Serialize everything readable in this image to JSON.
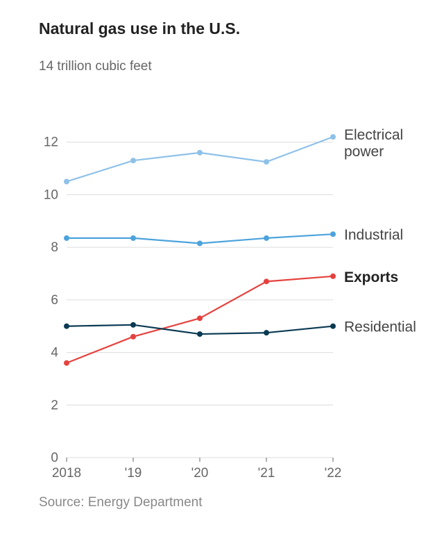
{
  "title": "Natural gas use in the U.S.",
  "y_top_label": "14 trillion cubic feet",
  "source_line": "Source: Energy Department",
  "chart": {
    "type": "line",
    "background_color": "#ffffff",
    "grid_color": "#dcdcdc",
    "axis_text_color": "#666666",
    "label_fontsize": 19,
    "series_label_fontsize": 21,
    "ylim": [
      0,
      14
    ],
    "ytick_step": 2,
    "yticks": [
      0,
      2,
      4,
      6,
      8,
      10,
      12
    ],
    "x_points": [
      2018,
      2019,
      2020,
      2021,
      2022
    ],
    "x_labels": [
      "2018",
      "'19",
      "'20",
      "'21",
      "'22"
    ],
    "line_width": 2.2,
    "marker_radius": 4,
    "series": [
      {
        "key": "electrical_power",
        "label": "Electrical power",
        "label_lines": [
          "Electrical",
          "power"
        ],
        "color": "#8ec1e8",
        "values": [
          10.5,
          11.3,
          11.6,
          11.25,
          12.2
        ],
        "bold": false
      },
      {
        "key": "industrial",
        "label": "Industrial",
        "label_lines": [
          "Industrial"
        ],
        "color": "#4ca3dc",
        "values": [
          8.35,
          8.35,
          8.15,
          8.35,
          8.5
        ],
        "bold": false
      },
      {
        "key": "exports",
        "label": "Exports",
        "label_lines": [
          "Exports"
        ],
        "color": "#e5423e",
        "values": [
          3.6,
          4.6,
          5.3,
          6.7,
          6.9
        ],
        "bold": true
      },
      {
        "key": "residential",
        "label": "Residential",
        "label_lines": [
          "Residential"
        ],
        "color": "#0a3a53",
        "values": [
          5.0,
          5.05,
          4.7,
          4.75,
          5.0
        ],
        "bold": false
      }
    ]
  }
}
